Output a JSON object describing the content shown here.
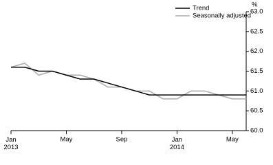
{
  "chart_data": {
    "type": "line",
    "y_axis_label": "%",
    "categories": [
      "Jan 2013",
      null,
      null,
      null,
      "May",
      null,
      null,
      null,
      "Sep",
      null,
      null,
      null,
      "Jan 2014",
      null,
      null,
      null,
      "May",
      null
    ],
    "series": [
      {
        "name": "Trend",
        "color": "#000000",
        "values": [
          61.6,
          61.6,
          61.5,
          61.5,
          61.4,
          61.3,
          61.3,
          61.2,
          61.1,
          61.0,
          60.9,
          60.9,
          60.9,
          60.9,
          60.9,
          60.9,
          60.9,
          60.9
        ]
      },
      {
        "name": "Seasonally adjusted",
        "color": "#aaaaaa",
        "values": [
          61.6,
          61.7,
          61.4,
          61.5,
          61.4,
          61.4,
          61.3,
          61.1,
          61.1,
          61.0,
          61.0,
          60.8,
          60.8,
          61.0,
          61.0,
          60.9,
          60.8,
          60.8
        ]
      }
    ],
    "ylim": [
      60.0,
      63.0
    ],
    "yticks": [
      {
        "value": 60.0,
        "label": "60.0"
      },
      {
        "value": 60.5,
        "label": "60.5"
      },
      {
        "value": 61.0,
        "label": "61.0"
      },
      {
        "value": 61.5,
        "label": "61.5"
      },
      {
        "value": 62.0,
        "label": "62.0"
      },
      {
        "value": 62.5,
        "label": "62.5"
      },
      {
        "value": 63.0,
        "label": "63.0"
      }
    ],
    "legend": "top-center"
  }
}
